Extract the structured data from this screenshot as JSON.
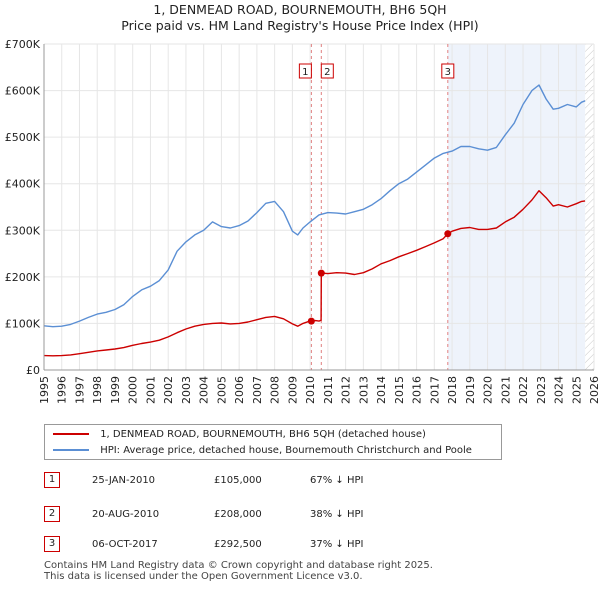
{
  "header": {
    "title_line1": "1, DENMEAD ROAD, BOURNEMOUTH, BH6 5QH",
    "title_line2": "Price paid vs. HM Land Registry's House Price Index (HPI)"
  },
  "legend": {
    "items": [
      {
        "label": "1, DENMEAD ROAD, BOURNEMOUTH, BH6 5QH (detached house)",
        "color": "#cc0000"
      },
      {
        "label": "HPI: Average price, detached house, Bournemouth Christchurch and Poole",
        "color": "#5b8fd4"
      }
    ]
  },
  "sales": [
    {
      "num": "1",
      "date": "25-JAN-2010",
      "price": "£105,000",
      "hpi": "67% ↓ HPI"
    },
    {
      "num": "2",
      "date": "20-AUG-2010",
      "price": "£208,000",
      "hpi": "38% ↓ HPI"
    },
    {
      "num": "3",
      "date": "06-OCT-2017",
      "price": "£292,500",
      "hpi": "37% ↓ HPI"
    }
  ],
  "footer": {
    "line1": "Contains HM Land Registry data © Crown copyright and database right 2025.",
    "line2": "This data is licensed under the Open Government Licence v3.0."
  },
  "colors": {
    "red": "#cc0000",
    "blue": "#5b8fd4",
    "shade": "#eef3fb",
    "grid": "#e6e6e6"
  },
  "chart_data": {
    "type": "line",
    "title": "Price paid vs. HM Land Registry's House Price Index (HPI)",
    "xlim": [
      1995,
      2026
    ],
    "ylim": [
      0,
      700000
    ],
    "x_ticks": [
      "1995",
      "1996",
      "1997",
      "1998",
      "1999",
      "2000",
      "2001",
      "2002",
      "2003",
      "2004",
      "2005",
      "2006",
      "2007",
      "2008",
      "2009",
      "2010",
      "2011",
      "2012",
      "2013",
      "2014",
      "2015",
      "2016",
      "2017",
      "2018",
      "2019",
      "2020",
      "2021",
      "2022",
      "2023",
      "2024",
      "2025",
      "2026"
    ],
    "y_ticks": [
      {
        "value": 0,
        "label": "£0"
      },
      {
        "value": 100000,
        "label": "£100K"
      },
      {
        "value": 200000,
        "label": "£200K"
      },
      {
        "value": 300000,
        "label": "£300K"
      },
      {
        "value": 400000,
        "label": "£400K"
      },
      {
        "value": 500000,
        "label": "£500K"
      },
      {
        "value": 600000,
        "label": "£600K"
      },
      {
        "value": 700000,
        "label": "£700K"
      }
    ],
    "shaded_period": [
      2017.76,
      2025.5
    ],
    "hatched_after": 2025.5,
    "markers": [
      {
        "label": "1",
        "x": 2010.07,
        "y": 105000
      },
      {
        "label": "2",
        "x": 2010.63,
        "y": 208000
      },
      {
        "label": "3",
        "x": 2017.76,
        "y": 292500
      }
    ],
    "series": [
      {
        "name": "1, DENMEAD ROAD, BOURNEMOUTH, BH6 5QH (detached house)",
        "x": [
          1995.0,
          1995.5,
          1996.0,
          1996.5,
          1997.0,
          1997.5,
          1998.0,
          1998.5,
          1999.0,
          1999.5,
          2000.0,
          2000.5,
          2001.0,
          2001.5,
          2002.0,
          2002.5,
          2003.0,
          2003.5,
          2004.0,
          2004.5,
          2005.0,
          2005.5,
          2006.0,
          2006.5,
          2007.0,
          2007.5,
          2008.0,
          2008.5,
          2009.0,
          2009.3,
          2009.6,
          2009.9,
          2010.07,
          2010.3,
          2010.5,
          2010.62,
          2010.63,
          2011.0,
          2011.5,
          2012.0,
          2012.5,
          2013.0,
          2013.5,
          2014.0,
          2014.5,
          2015.0,
          2015.5,
          2016.0,
          2016.5,
          2017.0,
          2017.5,
          2017.76,
          2018.0,
          2018.5,
          2019.0,
          2019.5,
          2020.0,
          2020.5,
          2021.0,
          2021.5,
          2022.0,
          2022.5,
          2022.9,
          2023.3,
          2023.7,
          2024.0,
          2024.5,
          2025.0,
          2025.3,
          2025.5
        ],
        "values": [
          31000,
          30500,
          31000,
          32500,
          35000,
          38000,
          41000,
          43000,
          45000,
          48000,
          53000,
          57000,
          60000,
          64000,
          71000,
          80000,
          88000,
          94000,
          98000,
          100000,
          101000,
          99000,
          100000,
          103000,
          108000,
          113000,
          115000,
          110000,
          99000,
          94000,
          100000,
          104000,
          105000,
          106000,
          105000,
          107000,
          208000,
          207000,
          209000,
          208000,
          205000,
          209000,
          217000,
          228000,
          235000,
          243000,
          250000,
          257000,
          265000,
          273000,
          282000,
          292500,
          298000,
          304000,
          306000,
          302000,
          302000,
          305000,
          318000,
          328000,
          345000,
          365000,
          385000,
          370000,
          352000,
          355000,
          350000,
          357000,
          362000,
          363000
        ]
      },
      {
        "name": "HPI: Average price, detached house, Bournemouth Christchurch and Poole",
        "x": [
          1995.0,
          1995.5,
          1996.0,
          1996.5,
          1997.0,
          1997.5,
          1998.0,
          1998.5,
          1999.0,
          1999.5,
          2000.0,
          2000.5,
          2001.0,
          2001.5,
          2002.0,
          2002.5,
          2003.0,
          2003.5,
          2004.0,
          2004.5,
          2005.0,
          2005.5,
          2006.0,
          2006.5,
          2007.0,
          2007.5,
          2008.0,
          2008.5,
          2009.0,
          2009.3,
          2009.6,
          2010.0,
          2010.5,
          2011.0,
          2011.5,
          2012.0,
          2012.5,
          2013.0,
          2013.5,
          2014.0,
          2014.5,
          2015.0,
          2015.5,
          2016.0,
          2016.5,
          2017.0,
          2017.5,
          2018.0,
          2018.5,
          2019.0,
          2019.5,
          2020.0,
          2020.5,
          2021.0,
          2021.5,
          2022.0,
          2022.5,
          2022.9,
          2023.3,
          2023.7,
          2024.0,
          2024.5,
          2025.0,
          2025.3,
          2025.5
        ],
        "values": [
          95000,
          93000,
          94000,
          98000,
          105000,
          113000,
          120000,
          124000,
          130000,
          140000,
          158000,
          172000,
          180000,
          192000,
          215000,
          255000,
          275000,
          290000,
          300000,
          318000,
          308000,
          305000,
          310000,
          320000,
          338000,
          358000,
          362000,
          340000,
          298000,
          290000,
          305000,
          318000,
          333000,
          338000,
          337000,
          335000,
          340000,
          345000,
          355000,
          368000,
          385000,
          400000,
          410000,
          425000,
          440000,
          455000,
          465000,
          470000,
          480000,
          480000,
          475000,
          472000,
          478000,
          505000,
          530000,
          570000,
          600000,
          612000,
          582000,
          560000,
          562000,
          570000,
          565000,
          575000,
          578000
        ]
      }
    ]
  }
}
